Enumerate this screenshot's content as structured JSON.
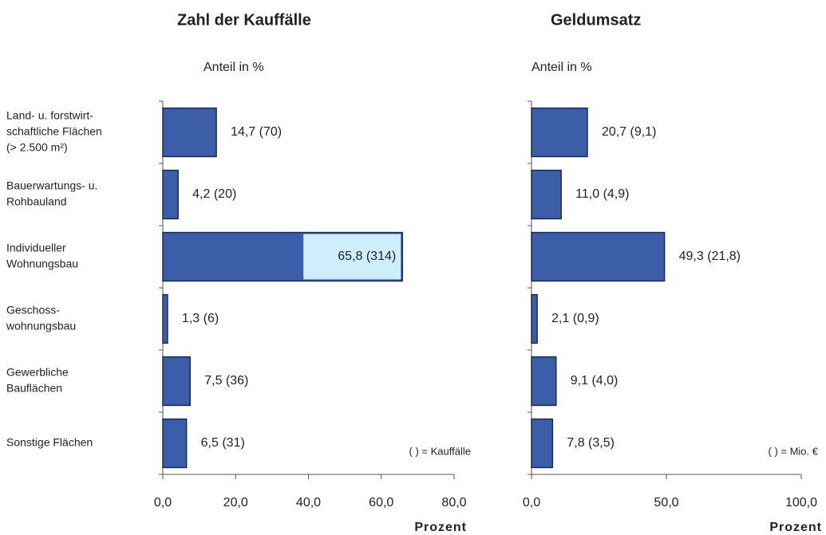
{
  "chart_data": [
    {
      "type": "bar",
      "title": "Zahl der Kauffälle",
      "subtitle": "Anteil in %",
      "categories": [
        [
          "Land- u. forstwirt-",
          "schaftliche Flächen",
          "(> 2.500 m²)"
        ],
        [
          "Bauerwartungs- u.",
          "Rohbauland"
        ],
        [
          "Individueller",
          "Wohnungsbau"
        ],
        [
          "Geschoss-",
          "wohnungsbau"
        ],
        [
          "Gewerbliche",
          "Bauflächen"
        ],
        [
          "Sonstige Flächen"
        ]
      ],
      "values": [
        14.7,
        4.2,
        65.8,
        1.3,
        7.5,
        6.5
      ],
      "value_labels": [
        "14,7  (70)",
        "4,2  (20)",
        "65,8  (314)",
        "1,3 (6)",
        "7,5  (36)",
        "6,5  (31)"
      ],
      "color": "#3c5ea8",
      "xlim": [
        0,
        80
      ],
      "xticks": [
        {
          "value": 0,
          "label": "0,0"
        },
        {
          "value": 20,
          "label": "20,0"
        },
        {
          "value": 40,
          "label": "40,0"
        },
        {
          "value": 60,
          "label": "60,0"
        },
        {
          "value": 80,
          "label": "80,0"
        }
      ],
      "xlabel": "Prozent",
      "annotation": "( ) = Kauffälle"
    },
    {
      "type": "bar",
      "title": "Geldumsatz",
      "subtitle": "Anteil in %",
      "values": [
        20.7,
        11.0,
        49.3,
        2.1,
        9.1,
        7.8
      ],
      "value_labels": [
        "20,7  (9,1)",
        "11,0  (4,9)",
        "49,3  (21,8)",
        "2,1  (0,9)",
        "9,1  (4,0)",
        "7,8  (3,5)"
      ],
      "color": "#3c5ea8",
      "xlim": [
        0,
        100
      ],
      "xticks": [
        {
          "value": 0,
          "label": "0,0"
        },
        {
          "value": 50,
          "label": "50,0"
        },
        {
          "value": 100,
          "label": "100,0"
        }
      ],
      "xlabel": "Prozent",
      "annotation": "( ) = Mio. €"
    }
  ]
}
